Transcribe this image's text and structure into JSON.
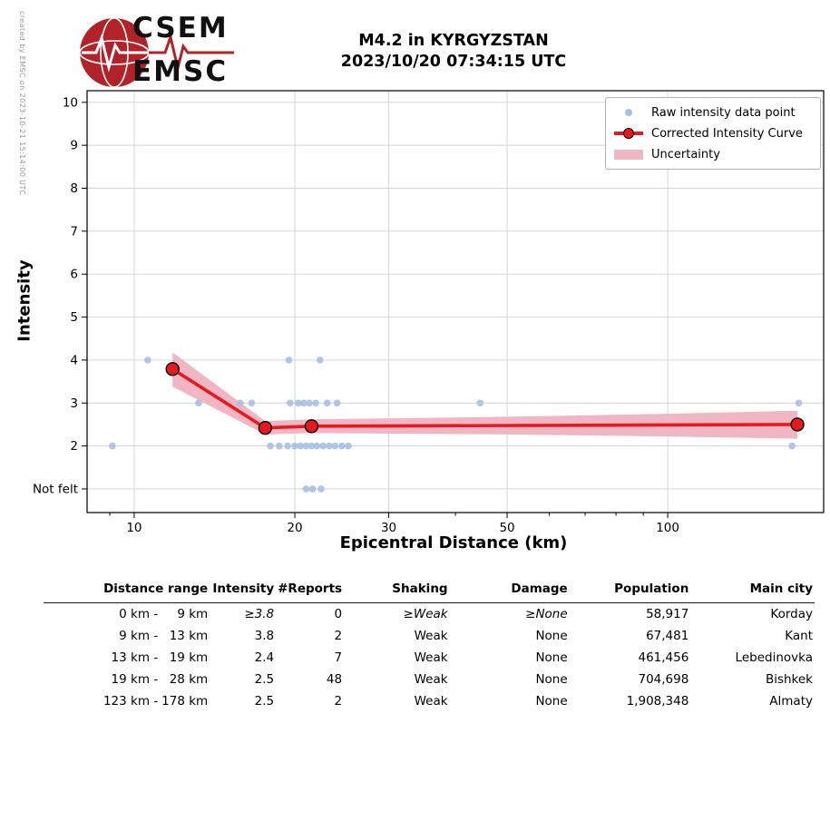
{
  "header": {
    "logo_line1": "CSEM",
    "logo_line2": "EMSC",
    "title_line1": "M4.2 in KYRGYZSTAN",
    "title_line2": "2023/10/20 07:34:15 UTC"
  },
  "watermark": "created by EMSC on 2023-10-21 15:14:00 UTC",
  "chart_data": {
    "type": "scatter",
    "title": "M4.2 in KYRGYZSTAN 2023/10/20 07:34:15 UTC",
    "xlabel": "Epicentral Distance (km)",
    "ylabel": "Intensity",
    "x_scale": "log",
    "x_range": [
      8.16,
      196
    ],
    "y_range": [
      0.45,
      10.27
    ],
    "x_ticks": [
      10,
      20,
      30,
      50,
      100
    ],
    "x_minor_ticks": [
      9,
      40,
      60,
      70,
      80,
      90
    ],
    "y_ticks": [
      {
        "v": 1,
        "label": "Not felt"
      },
      {
        "v": 2,
        "label": "2"
      },
      {
        "v": 3,
        "label": "3"
      },
      {
        "v": 4,
        "label": "4"
      },
      {
        "v": 5,
        "label": "5"
      },
      {
        "v": 6,
        "label": "6"
      },
      {
        "v": 7,
        "label": "7"
      },
      {
        "v": 8,
        "label": "8"
      },
      {
        "v": 9,
        "label": "9"
      },
      {
        "v": 10,
        "label": "10"
      }
    ],
    "grid": true,
    "legend_position": "upper right",
    "legend": [
      {
        "label": "Raw intensity data point",
        "type": "point"
      },
      {
        "label": "Corrected Intensity Curve",
        "type": "line"
      },
      {
        "label": "Uncertainty",
        "type": "band"
      }
    ],
    "raw_points": [
      [
        9.1,
        2
      ],
      [
        10.6,
        4
      ],
      [
        13.2,
        3
      ],
      [
        15.8,
        3
      ],
      [
        16.6,
        3
      ],
      [
        19.5,
        4
      ],
      [
        22.3,
        4
      ],
      [
        19.6,
        3
      ],
      [
        20.3,
        3
      ],
      [
        20.8,
        3
      ],
      [
        21.3,
        3
      ],
      [
        21.9,
        3
      ],
      [
        23.0,
        3
      ],
      [
        24.0,
        3
      ],
      [
        18.0,
        2
      ],
      [
        18.7,
        2
      ],
      [
        19.4,
        2
      ],
      [
        20.0,
        2
      ],
      [
        20.5,
        2
      ],
      [
        21.0,
        2
      ],
      [
        21.5,
        2
      ],
      [
        22.0,
        2
      ],
      [
        22.6,
        2
      ],
      [
        23.2,
        2
      ],
      [
        23.8,
        2
      ],
      [
        24.5,
        2
      ],
      [
        25.2,
        2
      ],
      [
        21.0,
        1
      ],
      [
        21.6,
        1
      ],
      [
        22.4,
        1
      ],
      [
        44.5,
        3
      ],
      [
        176,
        3
      ],
      [
        171,
        2
      ]
    ],
    "corrected_curve": [
      [
        11.8,
        3.79
      ],
      [
        17.6,
        2.42
      ],
      [
        21.5,
        2.46
      ],
      [
        175,
        2.5
      ]
    ],
    "uncertainty_band": [
      [
        11.8,
        4.18,
        3.38
      ],
      [
        17.6,
        2.58,
        2.27
      ],
      [
        21.5,
        2.62,
        2.3
      ],
      [
        50,
        2.68,
        2.27
      ],
      [
        100,
        2.75,
        2.22
      ],
      [
        175,
        2.82,
        2.17
      ]
    ],
    "colors": {
      "raw_point": "#a9bfe6",
      "curve": "#e8191c",
      "band": "#f1b6c4",
      "grid": "#d2d2d2",
      "logo_red": "#b12328"
    }
  },
  "table": {
    "headers": [
      "Distance range",
      "Intensity",
      "#Reports",
      "Shaking",
      "Damage",
      "Population",
      "Main city"
    ],
    "rows": [
      {
        "dist_from": "0 km -",
        "dist_to": "9 km",
        "intensity": "≥3.8",
        "reports": "0",
        "shaking": "≥Weak",
        "damage": "≥None",
        "population": "58,917",
        "city": "Korday"
      },
      {
        "dist_from": "9 km -",
        "dist_to": "13 km",
        "intensity": "3.8",
        "reports": "2",
        "shaking": "Weak",
        "damage": "None",
        "population": "67,481",
        "city": "Kant"
      },
      {
        "dist_from": "13 km -",
        "dist_to": "19 km",
        "intensity": "2.4",
        "reports": "7",
        "shaking": "Weak",
        "damage": "None",
        "population": "461,456",
        "city": "Lebedinovka"
      },
      {
        "dist_from": "19 km -",
        "dist_to": "28 km",
        "intensity": "2.5",
        "reports": "48",
        "shaking": "Weak",
        "damage": "None",
        "population": "704,698",
        "city": "Bishkek"
      },
      {
        "dist_from": "123 km -",
        "dist_to": "178 km",
        "intensity": "2.5",
        "reports": "2",
        "shaking": "Weak",
        "damage": "None",
        "population": "1,908,348",
        "city": "Almaty"
      }
    ]
  }
}
